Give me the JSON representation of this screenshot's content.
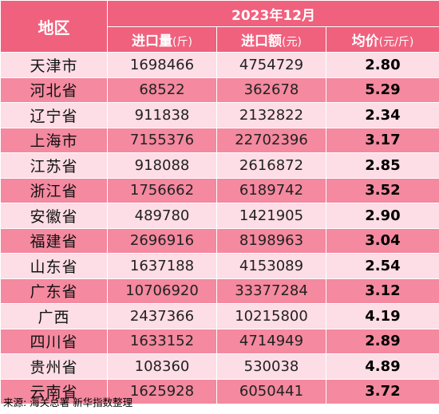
{
  "table": {
    "header": {
      "region": "地区",
      "period": "2023年12月",
      "columns": [
        {
          "label": "进口量",
          "unit": "(斤)"
        },
        {
          "label": "进口额",
          "unit": "(元)"
        },
        {
          "label": "均价",
          "unit": "(元/斤)"
        }
      ]
    },
    "rows": [
      {
        "region": "天津市",
        "quantity": "1698466",
        "amount": "4754729",
        "price": "2.80"
      },
      {
        "region": "河北省",
        "quantity": "68522",
        "amount": "362678",
        "price": "5.29"
      },
      {
        "region": "辽宁省",
        "quantity": "911838",
        "amount": "2132822",
        "price": "2.34"
      },
      {
        "region": "上海市",
        "quantity": "7155376",
        "amount": "22702396",
        "price": "3.17"
      },
      {
        "region": "江苏省",
        "quantity": "918088",
        "amount": "2616872",
        "price": "2.85"
      },
      {
        "region": "浙江省",
        "quantity": "1756662",
        "amount": "6189742",
        "price": "3.52"
      },
      {
        "region": "安徽省",
        "quantity": "489780",
        "amount": "1421905",
        "price": "2.90"
      },
      {
        "region": "福建省",
        "quantity": "2696916",
        "amount": "8198963",
        "price": "3.04"
      },
      {
        "region": "山东省",
        "quantity": "1637188",
        "amount": "4153089",
        "price": "2.54"
      },
      {
        "region": "广东省",
        "quantity": "10706920",
        "amount": "33377284",
        "price": "3.12"
      },
      {
        "region": "广西",
        "quantity": "2437366",
        "amount": "10215800",
        "price": "4.19"
      },
      {
        "region": "四川省",
        "quantity": "1633152",
        "amount": "4714949",
        "price": "2.89"
      },
      {
        "region": "贵州省",
        "quantity": "108360",
        "amount": "530038",
        "price": "4.89"
      },
      {
        "region": "云南省",
        "quantity": "1625928",
        "amount": "6050441",
        "price": "3.72"
      }
    ]
  },
  "source": "来源: 海关总署 新华指数整理",
  "colors": {
    "header_bg": "#f0617e",
    "row_light": "#fddde6",
    "row_dark": "#f4899f"
  }
}
